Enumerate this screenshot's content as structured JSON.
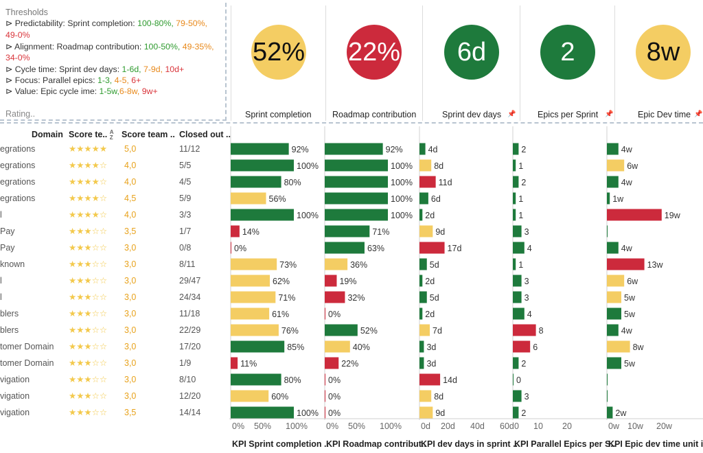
{
  "colors": {
    "green": "#1e7a3c",
    "yellow": "#f4cd63",
    "red": "#cc2a3c",
    "thr_green": "#2e9a2e",
    "thr_orange": "#e8891b",
    "thr_red": "#d9343a"
  },
  "thresholds": {
    "title": "Thresholds",
    "lines": [
      {
        "label": "⊳ Predictability: Sprint completion: ",
        "g": "100-80%",
        "o": "79-50%,",
        "r": "49-0%"
      },
      {
        "label": "⊳ Alignment: Roadmap contribution: ",
        "g": "100-50%",
        "o": "49-35%,",
        "r": "34-0%"
      },
      {
        "label": "⊳ Cycle time: Sprint dev days: ",
        "g": "1-6d",
        "o": "7-9d",
        "r": "10d+"
      },
      {
        "label": "⊳ Focus: Parallel epics: ",
        "g": "1-3",
        "o": "4-5",
        "r": "6+"
      },
      {
        "label": "⊳ Value: Epic cycle ime: ",
        "g": "1-5w",
        "o": "6-8w",
        "r": "9w+"
      }
    ],
    "rating": "Rating.."
  },
  "kpis": [
    {
      "value": "52%",
      "label": "Sprint completion",
      "color": "yellow",
      "icon": "pin-icon",
      "pinned": false
    },
    {
      "value": "22%",
      "label": "Roadmap contribution",
      "color": "red",
      "pinned": false
    },
    {
      "value": "6d",
      "label": "Sprint dev days",
      "color": "green",
      "pinned": true
    },
    {
      "value": "2",
      "label": "Epics per Sprint",
      "color": "green",
      "pinned": true
    },
    {
      "value": "8w",
      "label": "Epic Dev  time",
      "color": "yellow",
      "pinned": true
    }
  ],
  "table": {
    "headers": {
      "domain": "Domain",
      "score_team": "Score te..",
      "sort_icon": "A/Z sort-icon",
      "score": "Score team ..",
      "closed": "Closed out .."
    },
    "rows": [
      {
        "domain": "egrations",
        "stars": "★★★★★",
        "score": "5,0",
        "closed": "11/12"
      },
      {
        "domain": "egrations",
        "stars": "★★★★☆",
        "score": "4,0",
        "closed": "5/5"
      },
      {
        "domain": "egrations",
        "stars": "★★★★☆",
        "score": "4,0",
        "closed": "4/5"
      },
      {
        "domain": "egrations",
        "stars": "★★★★☆",
        "score": "4,5",
        "closed": "5/9"
      },
      {
        "domain": "l",
        "stars": "★★★★☆",
        "score": "4,0",
        "closed": "3/3"
      },
      {
        "domain": "Pay",
        "stars": "★★★☆☆",
        "score": "3,5",
        "closed": "1/7"
      },
      {
        "domain": "Pay",
        "stars": "★★★☆☆",
        "score": "3,0",
        "closed": "0/8"
      },
      {
        "domain": "known",
        "stars": "★★★☆☆",
        "score": "3,0",
        "closed": "8/11"
      },
      {
        "domain": "l",
        "stars": "★★★☆☆",
        "score": "3,0",
        "closed": "29/47"
      },
      {
        "domain": "l",
        "stars": "★★★☆☆",
        "score": "3,0",
        "closed": "24/34"
      },
      {
        "domain": "blers",
        "stars": "★★★☆☆",
        "score": "3,0",
        "closed": "11/18"
      },
      {
        "domain": "blers",
        "stars": "★★★☆☆",
        "score": "3,0",
        "closed": "22/29"
      },
      {
        "domain": "tomer Domain",
        "stars": "★★★☆☆",
        "score": "3,0",
        "closed": "17/20"
      },
      {
        "domain": "tomer Domain",
        "stars": "★★★☆☆",
        "score": "3,0",
        "closed": "1/9"
      },
      {
        "domain": "vigation",
        "stars": "★★★☆☆",
        "score": "3,0",
        "closed": "8/10"
      },
      {
        "domain": "vigation",
        "stars": "★★★☆☆",
        "score": "3,0",
        "closed": "12/20"
      },
      {
        "domain": "vigation",
        "stars": "★★★☆☆",
        "score": "3,5",
        "closed": "14/14"
      }
    ]
  },
  "chart_data": [
    {
      "type": "bar",
      "orientation": "horizontal",
      "xlabel": "KPI Sprint completion ..",
      "xlim": [
        0,
        100
      ],
      "ticks": [
        "0%",
        "50%",
        "100%"
      ],
      "values": [
        92,
        100,
        80,
        56,
        100,
        14,
        0,
        73,
        62,
        71,
        61,
        76,
        85,
        11,
        80,
        60,
        100
      ],
      "labels": [
        "92%",
        "100%",
        "80%",
        "56%",
        "100%",
        "14%",
        "0%",
        "73%",
        "62%",
        "71%",
        "61%",
        "76%",
        "85%",
        "11%",
        "80%",
        "60%",
        "100%"
      ],
      "colors": [
        "green",
        "green",
        "green",
        "yellow",
        "green",
        "red",
        "red",
        "yellow",
        "yellow",
        "yellow",
        "yellow",
        "yellow",
        "green",
        "red",
        "green",
        "yellow",
        "green"
      ]
    },
    {
      "type": "bar",
      "orientation": "horizontal",
      "xlabel": "KPI Roadmap contribut..",
      "xlim": [
        0,
        100
      ],
      "ticks": [
        "0%",
        "50%",
        "100%"
      ],
      "values": [
        92,
        100,
        100,
        100,
        100,
        71,
        63,
        36,
        19,
        32,
        0,
        52,
        40,
        22,
        0,
        0,
        0
      ],
      "labels": [
        "92%",
        "100%",
        "100%",
        "100%",
        "100%",
        "71%",
        "63%",
        "36%",
        "19%",
        "32%",
        "0%",
        "52%",
        "40%",
        "22%",
        "0%",
        "0%",
        "0%"
      ],
      "colors": [
        "green",
        "green",
        "green",
        "green",
        "green",
        "green",
        "green",
        "yellow",
        "red",
        "red",
        "red",
        "green",
        "yellow",
        "red",
        "red",
        "red",
        "red"
      ]
    },
    {
      "type": "bar",
      "orientation": "horizontal",
      "xlabel": "KPI dev days in sprint ..",
      "xlim": [
        0,
        60
      ],
      "ticks": [
        "0d",
        "20d",
        "40d",
        "60d"
      ],
      "values": [
        4,
        8,
        11,
        6,
        2,
        9,
        17,
        5,
        2,
        5,
        2,
        7,
        3,
        3,
        14,
        8,
        9
      ],
      "labels": [
        "4d",
        "8d",
        "11d",
        "6d",
        "2d",
        "9d",
        "17d",
        "5d",
        "2d",
        "5d",
        "2d",
        "7d",
        "3d",
        "3d",
        "14d",
        "8d",
        "9d"
      ],
      "colors": [
        "green",
        "yellow",
        "red",
        "green",
        "green",
        "yellow",
        "red",
        "green",
        "green",
        "green",
        "green",
        "yellow",
        "green",
        "green",
        "red",
        "yellow",
        "yellow"
      ]
    },
    {
      "type": "bar",
      "orientation": "horizontal",
      "xlabel": "KPI Parallel Epics per S..",
      "xlim": [
        0,
        25
      ],
      "ticks": [
        "0",
        "10",
        "20"
      ],
      "values": [
        2,
        1,
        2,
        1,
        1,
        3,
        4,
        1,
        3,
        3,
        4,
        8,
        6,
        2,
        0,
        3,
        2
      ],
      "labels": [
        "2",
        "1",
        "2",
        "1",
        "1",
        "3",
        "4",
        "1",
        "3",
        "3",
        "4",
        "8",
        "6",
        "2",
        "0",
        "3",
        "2"
      ],
      "colors": [
        "green",
        "green",
        "green",
        "green",
        "green",
        "green",
        "green",
        "green",
        "green",
        "green",
        "green",
        "red",
        "red",
        "green",
        "green",
        "green",
        "green"
      ]
    },
    {
      "type": "bar",
      "orientation": "horizontal",
      "xlabel": "KPI Epic dev time unit i..",
      "xlim": [
        0,
        25
      ],
      "ticks": [
        "0w",
        "10w",
        "20w"
      ],
      "values": [
        4,
        6,
        4,
        1,
        19,
        0,
        4,
        13,
        6,
        5,
        5,
        4,
        8,
        5,
        0,
        0,
        2
      ],
      "labels": [
        "4w",
        "6w",
        "4w",
        "1w",
        "19w",
        "",
        "4w",
        "13w",
        "6w",
        "5w",
        "5w",
        "4w",
        "8w",
        "5w",
        "",
        "",
        "2w"
      ],
      "colors": [
        "green",
        "yellow",
        "green",
        "green",
        "red",
        "green",
        "green",
        "red",
        "yellow",
        "yellow",
        "green",
        "green",
        "yellow",
        "green",
        "green",
        "green",
        "green"
      ]
    }
  ]
}
